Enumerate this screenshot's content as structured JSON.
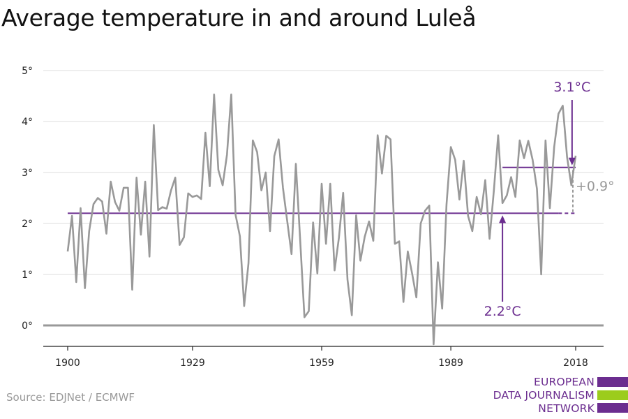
{
  "chart_data": {
    "type": "line",
    "title": "Average temperature in and around Luleå",
    "source": "Source: EDJNet / ECMWF",
    "xlim": [
      1900,
      2018
    ],
    "ylim": [
      -0.4,
      5
    ],
    "x_ticks": [
      1900,
      1929,
      1959,
      1989,
      2018
    ],
    "x_tick_labels": [
      "1900",
      "1929",
      "1959",
      "1989",
      "2018"
    ],
    "y_ticks": [
      0,
      1,
      2,
      3,
      4,
      5
    ],
    "y_tick_labels": [
      "0°",
      "1°",
      "2°",
      "3°",
      "4°",
      "5°"
    ],
    "grid": true,
    "colors": {
      "series": "#999999",
      "accent": "#6b2d8f",
      "grid": "#dddddd",
      "zero": "#999999",
      "lime": "#9ccc1c"
    },
    "series": [
      {
        "x": [
          1900,
          1901,
          1902,
          1903,
          1904,
          1905,
          1906,
          1907,
          1908,
          1909,
          1910,
          1911,
          1912,
          1913,
          1914,
          1915,
          1916,
          1917,
          1918,
          1919,
          1920,
          1921,
          1922,
          1923,
          1924,
          1925,
          1926,
          1927,
          1928,
          1929,
          1930,
          1931,
          1932,
          1933,
          1934,
          1935,
          1936,
          1937,
          1938,
          1939,
          1940,
          1941,
          1942,
          1943,
          1944,
          1945,
          1946,
          1947,
          1948,
          1949,
          1950,
          1951,
          1952,
          1953,
          1954,
          1955,
          1956,
          1957,
          1958,
          1959,
          1960,
          1961,
          1962,
          1963,
          1964,
          1965,
          1966,
          1967,
          1968,
          1969,
          1970,
          1971,
          1972,
          1973,
          1974,
          1975,
          1976,
          1977,
          1978,
          1979,
          1980,
          1981,
          1982,
          1983,
          1984,
          1985,
          1986,
          1987,
          1988,
          1989,
          1990,
          1991,
          1992,
          1993,
          1994,
          1995,
          1996,
          1997,
          1998,
          1999,
          2000,
          2001,
          2002,
          2003,
          2004,
          2005,
          2006,
          2007,
          2008,
          2009,
          2010,
          2011,
          2012,
          2013,
          2014,
          2015,
          2016,
          2017,
          2018
        ],
        "y": [
          1.45,
          2.15,
          0.85,
          2.3,
          0.73,
          1.85,
          2.38,
          2.5,
          2.43,
          1.8,
          2.82,
          2.42,
          2.25,
          2.7,
          2.7,
          0.7,
          2.9,
          1.78,
          2.82,
          1.35,
          3.93,
          2.26,
          2.32,
          2.29,
          2.65,
          2.9,
          1.58,
          1.73,
          2.59,
          2.52,
          2.55,
          2.48,
          3.78,
          2.73,
          4.53,
          3.05,
          2.75,
          3.35,
          4.53,
          2.17,
          1.75,
          0.38,
          1.22,
          3.63,
          3.4,
          2.65,
          3.0,
          1.85,
          3.32,
          3.65,
          2.7,
          2.05,
          1.4,
          3.17,
          1.67,
          0.16,
          0.28,
          2.02,
          1.02,
          2.78,
          1.6,
          2.78,
          1.08,
          1.72,
          2.6,
          0.9,
          0.2,
          2.16,
          1.27,
          1.74,
          2.04,
          1.66,
          3.73,
          2.98,
          3.72,
          3.65,
          1.6,
          1.65,
          0.46,
          1.45,
          1.02,
          0.55,
          2.0,
          2.25,
          2.35,
          -0.37,
          1.24,
          0.33,
          2.37,
          3.5,
          3.25,
          2.47,
          3.23,
          2.15,
          1.85,
          2.52,
          2.18,
          2.85,
          1.7,
          2.65,
          3.73,
          2.4,
          2.55,
          2.91,
          2.52,
          3.63,
          3.28,
          3.62,
          3.25,
          2.68,
          1.0,
          3.63,
          2.3,
          3.5,
          4.15,
          4.31,
          3.3,
          2.75,
          3.33
        ]
      }
    ],
    "reference_lines": [
      {
        "label": "2.2°C",
        "y": 2.2,
        "x_start": 1900,
        "x_end": 2014,
        "dashed_to": 2018
      },
      {
        "label": "3.1°C",
        "y": 3.1,
        "x_start": 2001,
        "x_end": 2018
      }
    ],
    "annotations": {
      "baseline_label": "2.2°C",
      "recent_label": "3.1°C",
      "diff_label": "+0.9°",
      "baseline_arrow_x": 2001,
      "recent_arrow_x": 2017
    }
  },
  "logo": {
    "lines": [
      "EUROPEAN",
      "DATA JOURNALISM",
      "NETWORK"
    ]
  }
}
